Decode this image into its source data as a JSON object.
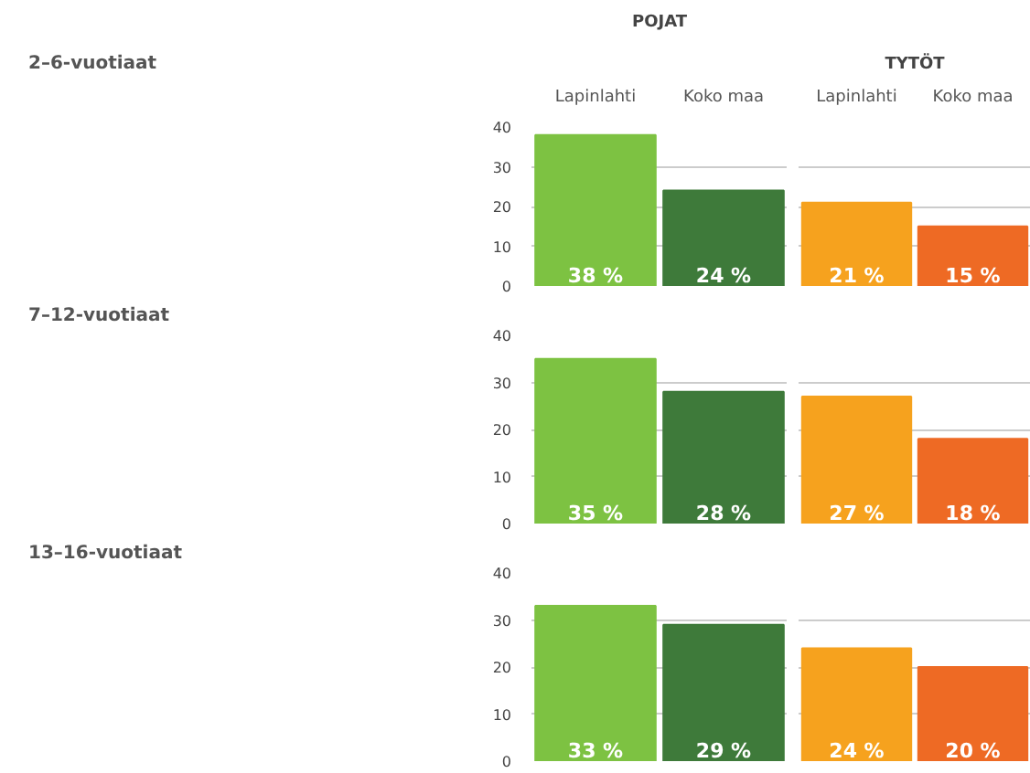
{
  "chart_data": [
    {
      "type": "bar",
      "title": "POJAT",
      "annotations": [
        "2–6-vuotiaat"
      ],
      "categories": [
        "Lapinlahti",
        "Koko maa"
      ],
      "values": [
        38,
        24
      ],
      "colors": [
        "#7dc242",
        "#3e7a3a"
      ],
      "value_labels": [
        "38 %",
        "24 %"
      ],
      "ylim": [
        0,
        40
      ],
      "yticks": [
        0,
        10,
        20,
        30,
        40
      ],
      "grid": "y"
    },
    {
      "type": "bar",
      "title": "TYTÖT",
      "categories": [
        "Lapinlahti",
        "Koko maa"
      ],
      "values": [
        21,
        15
      ],
      "colors": [
        "#f6a21e",
        "#ee6a24"
      ],
      "value_labels": [
        "21 %",
        "15 %"
      ],
      "ylim": [
        0,
        40
      ],
      "yticks": [
        0,
        10,
        20,
        30,
        40
      ],
      "grid": "y",
      "tick_labels": "x"
    },
    {
      "type": "bar",
      "annotations": [
        "7–12-vuotiaat"
      ],
      "categories": [
        null,
        null
      ],
      "values": [
        35,
        28
      ],
      "colors": [
        "#7dc242",
        "#3e7a3a"
      ],
      "value_labels": [
        "35 %",
        "28 %"
      ],
      "ylim": [
        0,
        40
      ],
      "yticks": [
        0,
        10,
        20,
        30,
        40
      ],
      "grid": "y",
      "tick_labels": "y"
    },
    {
      "type": "bar",
      "categories": [
        null,
        null
      ],
      "values": [
        27,
        18
      ],
      "colors": [
        "#f6a21e",
        "#ee6a24"
      ],
      "value_labels": [
        "27 %",
        "18 %"
      ],
      "ylim": [
        0,
        40
      ],
      "yticks": [
        0,
        10,
        20,
        30,
        40
      ],
      "grid": "y",
      "tick_labels": false
    },
    {
      "type": "bar",
      "annotations": [
        "13–16-vuotiaat"
      ],
      "categories": [
        null,
        null
      ],
      "values": [
        33,
        29
      ],
      "colors": [
        "#7dc242",
        "#3e7a3a"
      ],
      "value_labels": [
        "33 %",
        "29 %"
      ],
      "ylim": [
        0,
        40
      ],
      "yticks": [
        0,
        10,
        20,
        30,
        40
      ],
      "grid": "y",
      "tick_labels": "y"
    },
    {
      "type": "bar",
      "categories": [
        null,
        null
      ],
      "values": [
        24,
        20
      ],
      "colors": [
        "#f6a21e",
        "#ee6a24"
      ],
      "value_labels": [
        "24 %",
        "20 %"
      ],
      "ylim": [
        0,
        40
      ],
      "yticks": [
        0,
        10,
        20,
        30,
        40
      ],
      "grid": "y",
      "tick_labels": false
    }
  ]
}
